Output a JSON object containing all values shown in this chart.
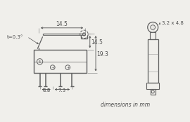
{
  "bg_color": "#f0efeb",
  "line_color": "#606060",
  "text_color": "#505050",
  "annotations": {
    "width_top": "14.5",
    "height_right_inner": "14.5",
    "height_right_outer": "19.3",
    "width_bottom_left": "8.8",
    "width_bottom_right": "7.3",
    "lever_thickness": "t=0.3°",
    "roller_dim": "3.2 x 4.8",
    "footer": "dimensions in mm"
  }
}
